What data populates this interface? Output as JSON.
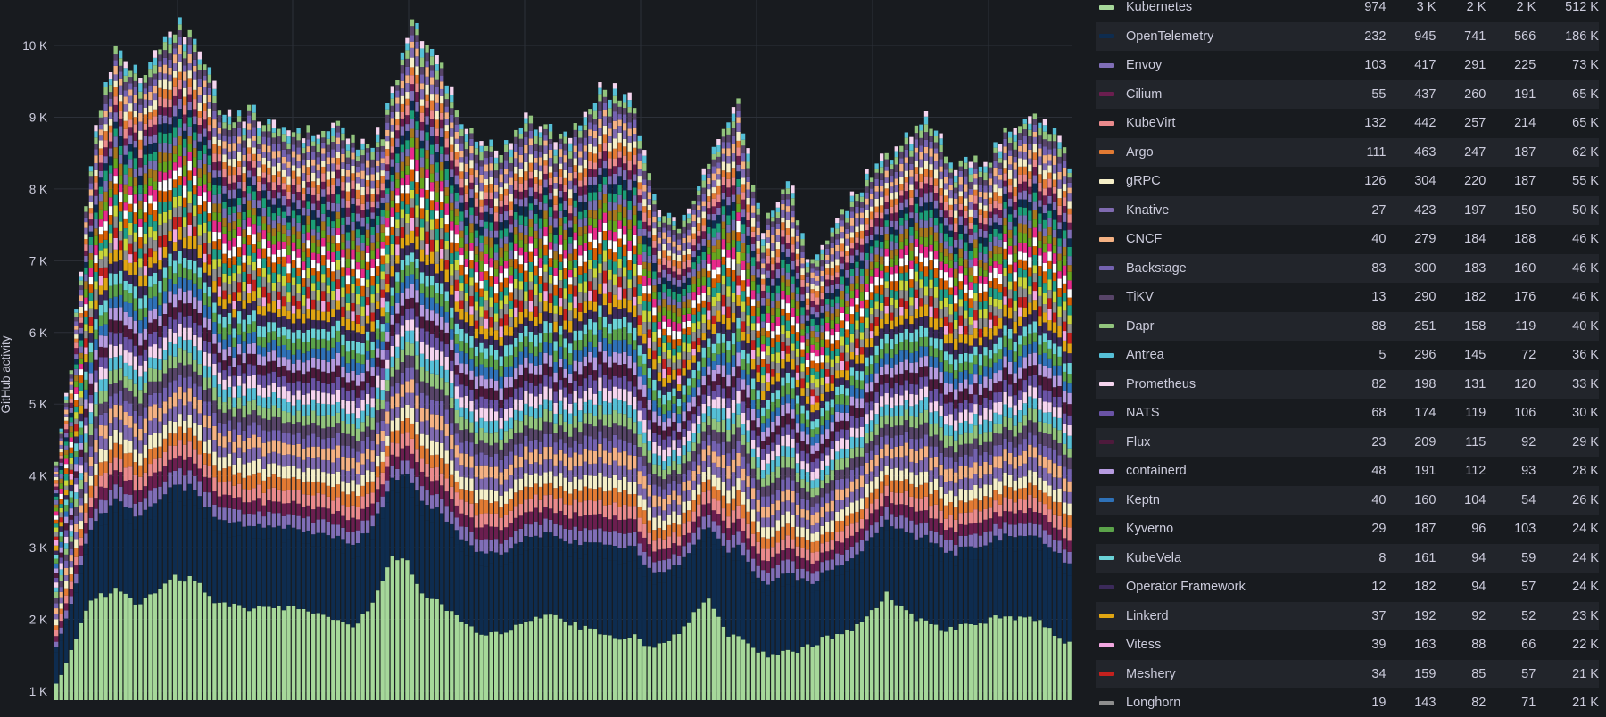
{
  "chart_data": {
    "type": "bar",
    "stacked": true,
    "ylabel": "GitHub activity",
    "ylim": [
      1000,
      10550
    ],
    "yticks": [
      {
        "value": 1000,
        "label": "1 K"
      },
      {
        "value": 2000,
        "label": "2 K"
      },
      {
        "value": 3000,
        "label": "3 K"
      },
      {
        "value": 4000,
        "label": "4 K"
      },
      {
        "value": 5000,
        "label": "5 K"
      },
      {
        "value": 6000,
        "label": "6 K"
      },
      {
        "value": 7000,
        "label": "7 K"
      },
      {
        "value": 8000,
        "label": "8 K"
      },
      {
        "value": 9000,
        "label": "9 K"
      },
      {
        "value": 10000,
        "label": "10 K"
      }
    ],
    "total_profile": [
      [
        0,
        4200
      ],
      [
        3,
        5600
      ],
      [
        8,
        9000
      ],
      [
        12,
        9900
      ],
      [
        18,
        9600
      ],
      [
        25,
        10350
      ],
      [
        30,
        9800
      ],
      [
        34,
        9000
      ],
      [
        40,
        9100
      ],
      [
        46,
        8850
      ],
      [
        52,
        8800
      ],
      [
        58,
        8900
      ],
      [
        62,
        8600
      ],
      [
        66,
        8800
      ],
      [
        72,
        10400
      ],
      [
        78,
        9700
      ],
      [
        82,
        9000
      ],
      [
        86,
        8700
      ],
      [
        90,
        8600
      ],
      [
        96,
        9000
      ],
      [
        100,
        8800
      ],
      [
        104,
        8700
      ],
      [
        110,
        9400
      ],
      [
        116,
        9300
      ],
      [
        122,
        7750
      ],
      [
        126,
        7500
      ],
      [
        132,
        8400
      ],
      [
        138,
        9200
      ],
      [
        143,
        7400
      ],
      [
        148,
        8200
      ],
      [
        152,
        7100
      ],
      [
        156,
        7200
      ],
      [
        162,
        8000
      ],
      [
        170,
        8600
      ],
      [
        176,
        9000
      ],
      [
        182,
        8300
      ],
      [
        188,
        8400
      ],
      [
        194,
        8900
      ],
      [
        200,
        9000
      ],
      [
        205,
        8400
      ]
    ],
    "base_profile": [
      [
        0,
        1100
      ],
      [
        3,
        1550
      ],
      [
        7,
        2300
      ],
      [
        12,
        2400
      ],
      [
        17,
        2200
      ],
      [
        23,
        2600
      ],
      [
        28,
        2550
      ],
      [
        33,
        2200
      ],
      [
        40,
        2150
      ],
      [
        48,
        2150
      ],
      [
        54,
        2050
      ],
      [
        60,
        1900
      ],
      [
        64,
        2200
      ],
      [
        68,
        2900
      ],
      [
        71,
        2800
      ],
      [
        74,
        2400
      ],
      [
        80,
        2100
      ],
      [
        86,
        1800
      ],
      [
        92,
        1850
      ],
      [
        100,
        2100
      ],
      [
        104,
        1950
      ],
      [
        112,
        1750
      ],
      [
        117,
        1750
      ],
      [
        120,
        1600
      ],
      [
        125,
        1750
      ],
      [
        132,
        2300
      ],
      [
        136,
        1800
      ],
      [
        144,
        1500
      ],
      [
        150,
        1550
      ],
      [
        156,
        1750
      ],
      [
        162,
        1900
      ],
      [
        168,
        2350
      ],
      [
        174,
        2000
      ],
      [
        180,
        1850
      ],
      [
        186,
        1950
      ],
      [
        192,
        2050
      ],
      [
        198,
        2000
      ],
      [
        205,
        1650
      ]
    ],
    "n_bars": 206,
    "series": [
      {
        "name": "Kubernetes",
        "color": "#a6d89a",
        "values": [
          974,
          "3 K",
          "2 K",
          "2 K",
          "512 K"
        ]
      },
      {
        "name": "OpenTelemetry",
        "color": "#0e2c4f",
        "values": [
          232,
          945,
          741,
          566,
          "186 K"
        ]
      },
      {
        "name": "Envoy",
        "color": "#806eb7",
        "values": [
          103,
          417,
          291,
          225,
          "73 K"
        ]
      },
      {
        "name": "Cilium",
        "color": "#6b1e4f",
        "values": [
          55,
          437,
          260,
          191,
          "65 K"
        ]
      },
      {
        "name": "KubeVirt",
        "color": "#ea8a8c",
        "values": [
          132,
          442,
          257,
          214,
          "65 K"
        ]
      },
      {
        "name": "Argo",
        "color": "#e27a33",
        "values": [
          111,
          463,
          247,
          187,
          "62 K"
        ]
      },
      {
        "name": "gRPC",
        "color": "#f5efc8",
        "values": [
          126,
          304,
          220,
          187,
          "55 K"
        ]
      },
      {
        "name": "Knative",
        "color": "#7f6ab0",
        "values": [
          27,
          423,
          197,
          150,
          "50 K"
        ]
      },
      {
        "name": "CNCF",
        "color": "#f4b183",
        "values": [
          40,
          279,
          184,
          188,
          "46 K"
        ]
      },
      {
        "name": "Backstage",
        "color": "#7462b0",
        "values": [
          83,
          300,
          183,
          160,
          "46 K"
        ]
      },
      {
        "name": "TiKV",
        "color": "#574468",
        "values": [
          13,
          290,
          182,
          176,
          "46 K"
        ]
      },
      {
        "name": "Dapr",
        "color": "#92c47d",
        "values": [
          88,
          251,
          158,
          119,
          "40 K"
        ]
      },
      {
        "name": "Antrea",
        "color": "#55bfd6",
        "values": [
          5,
          296,
          145,
          72,
          "36 K"
        ]
      },
      {
        "name": "Prometheus",
        "color": "#f6d5ef",
        "values": [
          82,
          198,
          131,
          120,
          "33 K"
        ]
      },
      {
        "name": "NATS",
        "color": "#6a53a6",
        "values": [
          68,
          174,
          119,
          106,
          "30 K"
        ]
      },
      {
        "name": "Flux",
        "color": "#4e1a3c",
        "values": [
          23,
          209,
          115,
          92,
          "29 K"
        ]
      },
      {
        "name": "containerd",
        "color": "#b69be0",
        "values": [
          48,
          191,
          112,
          93,
          "28 K"
        ]
      },
      {
        "name": "Keptn",
        "color": "#2e71b8",
        "values": [
          40,
          160,
          104,
          54,
          "26 K"
        ]
      },
      {
        "name": "Kyverno",
        "color": "#5ba34a",
        "values": [
          29,
          187,
          96,
          103,
          "24 K"
        ]
      },
      {
        "name": "KubeVela",
        "color": "#6ad2d7",
        "values": [
          8,
          161,
          94,
          59,
          "24 K"
        ]
      },
      {
        "name": "Operator Framework",
        "color": "#3b2a5a",
        "values": [
          12,
          182,
          94,
          57,
          "24 K"
        ]
      },
      {
        "name": "Linkerd",
        "color": "#e0a512",
        "values": [
          37,
          192,
          92,
          52,
          "23 K"
        ]
      },
      {
        "name": "Vitess",
        "color": "#f2a7e0",
        "values": [
          39,
          163,
          88,
          66,
          "22 K"
        ]
      },
      {
        "name": "Meshery",
        "color": "#c4211e",
        "values": [
          34,
          159,
          85,
          57,
          "21 K"
        ]
      },
      {
        "name": "Longhorn",
        "color": "#8e8e8e",
        "values": [
          19,
          143,
          82,
          71,
          "21 K"
        ]
      }
    ],
    "extra_colors": [
      "#c9d63a",
      "#1f9e89",
      "#d95f02",
      "#ffffff",
      "#e7298a",
      "#66a61e",
      "#a6761d",
      "#7570b3",
      "#1b9e77"
    ]
  }
}
